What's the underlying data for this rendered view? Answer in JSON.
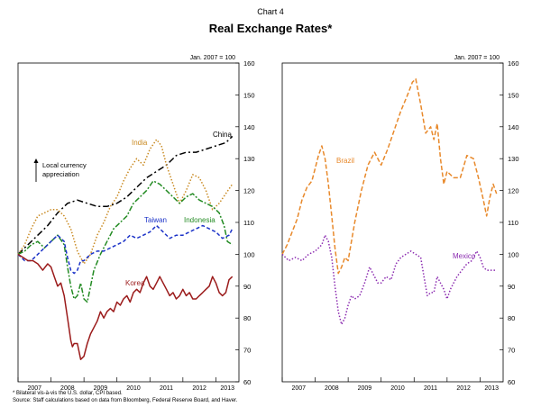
{
  "chart_number": "Chart 4",
  "title": "Real Exchange Rates*",
  "footnote": "* Bilateral vis-à-vis the U.S. dollar, CPI based.",
  "source": "Source: Staff calculations based on data from Bloomberg, Federal Reserve Board, and Haver.",
  "chart_data": [
    {
      "type": "line",
      "axis_note": "Jan. 2007 = 100",
      "ylim": [
        60,
        160
      ],
      "yticks": [
        60,
        70,
        80,
        90,
        100,
        110,
        120,
        130,
        140,
        150,
        160
      ],
      "x_range": [
        2007.0,
        2013.7
      ],
      "xticks": [
        "2007",
        "2008",
        "2009",
        "2010",
        "2011",
        "2012",
        "2013"
      ],
      "annotation": "Local currency\nappreciation",
      "series": [
        {
          "name": "China",
          "color": "#000000",
          "dash": "7,3,2,3",
          "x": [
            2007.0,
            2007.3,
            2007.6,
            2007.9,
            2008.2,
            2008.5,
            2008.8,
            2009.1,
            2009.4,
            2009.7,
            2010.0,
            2010.3,
            2010.6,
            2010.9,
            2011.2,
            2011.5,
            2011.8,
            2012.1,
            2012.4,
            2012.7,
            2013.0,
            2013.3,
            2013.5
          ],
          "y": [
            100,
            103,
            106,
            109,
            113,
            116,
            117,
            116,
            115,
            115,
            116,
            118,
            121,
            124,
            126,
            128,
            131,
            132,
            132,
            133,
            134,
            135,
            137
          ]
        },
        {
          "name": "India",
          "color": "#c98a22",
          "dash": "1.5,2",
          "x": [
            2007.0,
            2007.2,
            2007.4,
            2007.6,
            2007.8,
            2008.0,
            2008.2,
            2008.4,
            2008.6,
            2008.8,
            2009.0,
            2009.2,
            2009.4,
            2009.6,
            2009.8,
            2010.0,
            2010.2,
            2010.4,
            2010.6,
            2010.8,
            2011.0,
            2011.2,
            2011.35,
            2011.5,
            2011.7,
            2011.9,
            2012.1,
            2012.3,
            2012.5,
            2012.7,
            2012.9,
            2013.1,
            2013.3,
            2013.5
          ],
          "y": [
            100,
            103,
            108,
            112,
            113,
            114,
            114,
            112,
            108,
            101,
            97,
            100,
            106,
            110,
            115,
            118,
            123,
            127,
            130,
            128,
            133,
            136,
            134,
            128,
            122,
            116,
            120,
            125,
            124,
            120,
            114,
            116,
            119,
            122
          ]
        },
        {
          "name": "Indonesia",
          "color": "#238b23",
          "dash": "6,2,2,2",
          "x": [
            2007.0,
            2007.2,
            2007.4,
            2007.6,
            2007.8,
            2008.0,
            2008.2,
            2008.4,
            2008.5,
            2008.6,
            2008.7,
            2008.8,
            2008.9,
            2009.0,
            2009.1,
            2009.3,
            2009.5,
            2009.7,
            2009.9,
            2010.1,
            2010.3,
            2010.5,
            2010.7,
            2010.9,
            2011.1,
            2011.3,
            2011.5,
            2011.7,
            2011.9,
            2012.1,
            2012.3,
            2012.5,
            2012.7,
            2012.9,
            2013.1,
            2013.25,
            2013.35,
            2013.5
          ],
          "y": [
            100,
            101,
            103,
            104,
            102,
            104,
            106,
            103,
            96,
            90,
            86,
            87,
            91,
            86,
            85,
            95,
            100,
            104,
            108,
            110,
            112,
            116,
            118,
            120,
            123,
            122,
            120,
            118,
            116,
            118,
            119,
            117,
            116,
            115,
            113,
            109,
            104,
            103
          ]
        },
        {
          "name": "Taiwan",
          "color": "#1c33c8",
          "dash": "4,2.5",
          "x": [
            2007.0,
            2007.2,
            2007.4,
            2007.6,
            2007.8,
            2008.0,
            2008.2,
            2008.4,
            2008.5,
            2008.6,
            2008.7,
            2008.8,
            2008.9,
            2009.0,
            2009.2,
            2009.4,
            2009.6,
            2009.8,
            2010.0,
            2010.2,
            2010.4,
            2010.6,
            2010.8,
            2011.0,
            2011.2,
            2011.4,
            2011.6,
            2011.8,
            2012.0,
            2012.2,
            2012.4,
            2012.6,
            2012.8,
            2013.0,
            2013.2,
            2013.4,
            2013.5
          ],
          "y": [
            100,
            98,
            98,
            100,
            102,
            104,
            106,
            104,
            99,
            95,
            94,
            95,
            98,
            98,
            100,
            101,
            101,
            102,
            103,
            104,
            106,
            105,
            106,
            107,
            109,
            107,
            105,
            106,
            106,
            107,
            108,
            109,
            108,
            107,
            105,
            106,
            108
          ]
        },
        {
          "name": "Korea",
          "color": "#9b1b1b",
          "dash": "",
          "x": [
            2007.0,
            2007.15,
            2007.3,
            2007.45,
            2007.6,
            2007.75,
            2007.9,
            2008.0,
            2008.1,
            2008.2,
            2008.3,
            2008.4,
            2008.5,
            2008.6,
            2008.65,
            2008.7,
            2008.8,
            2008.9,
            2009.0,
            2009.1,
            2009.2,
            2009.3,
            2009.4,
            2009.5,
            2009.6,
            2009.7,
            2009.8,
            2009.9,
            2010.0,
            2010.1,
            2010.2,
            2010.3,
            2010.4,
            2010.5,
            2010.6,
            2010.7,
            2010.8,
            2010.9,
            2011.0,
            2011.1,
            2011.2,
            2011.3,
            2011.4,
            2011.5,
            2011.6,
            2011.7,
            2011.8,
            2011.9,
            2012.0,
            2012.1,
            2012.2,
            2012.3,
            2012.4,
            2012.5,
            2012.6,
            2012.7,
            2012.8,
            2012.9,
            2013.0,
            2013.1,
            2013.2,
            2013.3,
            2013.4,
            2013.5
          ],
          "y": [
            100,
            99,
            98,
            98,
            97,
            95,
            97,
            96,
            93,
            90,
            91,
            87,
            80,
            73,
            71,
            72,
            72,
            67,
            68,
            72,
            75,
            77,
            79,
            82,
            80,
            82,
            83,
            82,
            85,
            84,
            86,
            87,
            85,
            88,
            89,
            88,
            91,
            93,
            90,
            89,
            91,
            93,
            91,
            89,
            87,
            88,
            86,
            87,
            89,
            87,
            88,
            86,
            86,
            87,
            88,
            89,
            90,
            93,
            91,
            88,
            87,
            88,
            92,
            93
          ]
        }
      ]
    },
    {
      "type": "line",
      "axis_note": "Jan. 2007 = 100",
      "ylim": [
        60,
        160
      ],
      "yticks": [
        60,
        70,
        80,
        90,
        100,
        110,
        120,
        130,
        140,
        150,
        160
      ],
      "x_range": [
        2007.0,
        2013.7
      ],
      "xticks": [
        "2007",
        "2008",
        "2009",
        "2010",
        "2011",
        "2012",
        "2013"
      ],
      "series": [
        {
          "name": "Brazil",
          "color": "#e8892b",
          "dash": "5,2.5",
          "x": [
            2007.0,
            2007.15,
            2007.3,
            2007.45,
            2007.6,
            2007.75,
            2007.9,
            2008.0,
            2008.1,
            2008.2,
            2008.3,
            2008.4,
            2008.5,
            2008.6,
            2008.7,
            2008.8,
            2008.9,
            2009.0,
            2009.2,
            2009.4,
            2009.6,
            2009.8,
            2010.0,
            2010.2,
            2010.4,
            2010.6,
            2010.8,
            2010.95,
            2011.05,
            2011.2,
            2011.35,
            2011.5,
            2011.6,
            2011.7,
            2011.8,
            2011.9,
            2012.0,
            2012.2,
            2012.4,
            2012.6,
            2012.8,
            2012.95,
            2013.1,
            2013.2,
            2013.3,
            2013.4,
            2013.5
          ],
          "y": [
            100,
            103,
            107,
            111,
            117,
            121,
            123,
            127,
            131,
            134,
            130,
            122,
            112,
            102,
            94,
            96,
            99,
            98,
            110,
            120,
            128,
            132,
            128,
            133,
            139,
            145,
            150,
            154,
            155,
            147,
            138,
            140,
            136,
            141,
            130,
            122,
            126,
            124,
            124,
            131,
            130,
            124,
            117,
            112,
            118,
            122,
            119
          ]
        },
        {
          "name": "Mexico",
          "color": "#8b2bb0",
          "dash": "1.5,2",
          "x": [
            2007.0,
            2007.2,
            2007.4,
            2007.6,
            2007.8,
            2008.0,
            2008.2,
            2008.3,
            2008.4,
            2008.5,
            2008.6,
            2008.7,
            2008.8,
            2008.9,
            2009.0,
            2009.1,
            2009.2,
            2009.35,
            2009.5,
            2009.65,
            2009.8,
            2009.9,
            2010.0,
            2010.15,
            2010.3,
            2010.45,
            2010.6,
            2010.75,
            2010.9,
            2011.05,
            2011.2,
            2011.3,
            2011.4,
            2011.5,
            2011.6,
            2011.7,
            2011.8,
            2011.9,
            2012.0,
            2012.1,
            2012.2,
            2012.3,
            2012.45,
            2012.6,
            2012.75,
            2012.9,
            2013.0,
            2013.1,
            2013.2,
            2013.35,
            2013.5
          ],
          "y": [
            100,
            98,
            99,
            98,
            100,
            101,
            103,
            106,
            104,
            99,
            90,
            82,
            78,
            80,
            84,
            87,
            86,
            87,
            91,
            96,
            93,
            91,
            91,
            93,
            92,
            97,
            99,
            100,
            101,
            100,
            99,
            93,
            87,
            88,
            88,
            93,
            91,
            89,
            86,
            89,
            91,
            93,
            95,
            97,
            98,
            101,
            99,
            96,
            95,
            95,
            95
          ]
        }
      ]
    }
  ]
}
